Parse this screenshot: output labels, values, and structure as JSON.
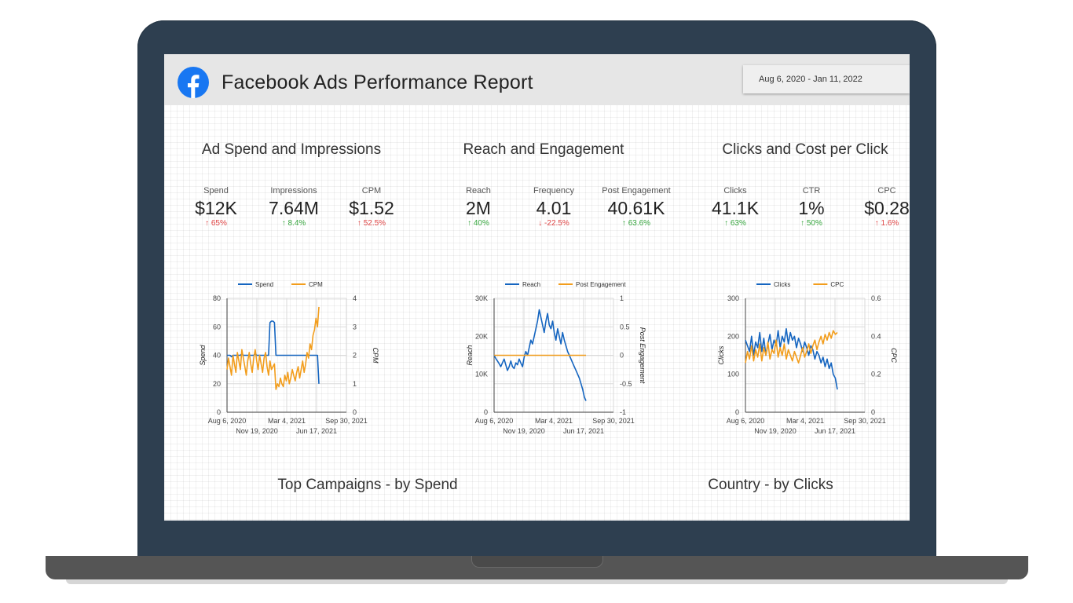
{
  "report": {
    "title": "Facebook Ads Performance Report",
    "date_range": "Aug 6, 2020 - Jan 11, 2022"
  },
  "colors": {
    "blue": "#1565c0",
    "orange": "#f29d1c",
    "good": "#37a63f",
    "bad": "#e04545",
    "facebook": "#1877f2"
  },
  "sections": [
    {
      "title": "Ad Spend and Impressions",
      "metrics": [
        {
          "label": "Spend",
          "value": "$12K",
          "delta": "65%",
          "direction": "up",
          "tone": "bad"
        },
        {
          "label": "Impressions",
          "value": "7.64M",
          "delta": "8.4%",
          "direction": "up",
          "tone": "good"
        },
        {
          "label": "CPM",
          "value": "$1.52",
          "delta": "52.5%",
          "direction": "up",
          "tone": "bad"
        }
      ]
    },
    {
      "title": "Reach and Engagement",
      "metrics": [
        {
          "label": "Reach",
          "value": "2M",
          "delta": "40%",
          "direction": "up",
          "tone": "good"
        },
        {
          "label": "Frequency",
          "value": "4.01",
          "delta": "-22.5%",
          "direction": "down",
          "tone": "bad"
        },
        {
          "label": "Post Engagement",
          "value": "40.61K",
          "delta": "63.6%",
          "direction": "up",
          "tone": "good"
        }
      ]
    },
    {
      "title": "Clicks and Cost per Click",
      "metrics": [
        {
          "label": "Clicks",
          "value": "41.1K",
          "delta": "63%",
          "direction": "up",
          "tone": "good"
        },
        {
          "label": "CTR",
          "value": "1%",
          "delta": "50%",
          "direction": "up",
          "tone": "good"
        },
        {
          "label": "CPC",
          "value": "$0.28",
          "delta": "1.6%",
          "direction": "up",
          "tone": "bad"
        }
      ]
    }
  ],
  "bottom_titles": {
    "campaigns": "Top Campaigns - by Spend",
    "country": "Country - by Clicks"
  },
  "chart_data": [
    {
      "type": "line",
      "id": "spend-cpm",
      "x_ticks_top": [
        "Aug 6, 2020",
        "Mar 4, 2021",
        "Sep 30, 2021"
      ],
      "x_ticks_bottom": [
        "Nov 19, 2020",
        "Jun 17, 2021"
      ],
      "ylabel": "Spend",
      "y2label": "CPM",
      "ylim": [
        0,
        80
      ],
      "y_ticks": [
        "0",
        "20",
        "40",
        "60",
        "80"
      ],
      "y2lim": [
        0,
        4
      ],
      "y2_ticks": [
        "0",
        "1",
        "2",
        "3",
        "4"
      ],
      "series": [
        {
          "name": "Spend",
          "axis": "left",
          "color": "blue",
          "values": [
            40,
            40,
            40,
            39,
            40,
            40,
            40,
            40,
            40,
            40,
            41,
            40,
            40,
            40,
            40,
            40,
            40,
            40,
            40,
            41,
            40,
            40,
            40,
            40,
            40,
            40,
            40,
            40,
            40,
            63,
            64,
            64,
            63,
            40,
            40,
            40,
            40,
            40,
            40,
            40,
            40,
            40,
            40,
            40,
            40,
            40,
            40,
            40,
            40,
            40,
            40,
            40,
            40,
            40,
            40,
            40,
            40,
            40,
            40,
            40,
            40,
            40,
            20
          ]
        },
        {
          "name": "CPM",
          "axis": "right",
          "color": "orange",
          "values": [
            1.5,
            1.9,
            1.6,
            1.3,
            2.0,
            1.7,
            1.4,
            2.1,
            1.8,
            1.5,
            2.2,
            1.9,
            1.6,
            1.3,
            1.8,
            2.1,
            1.7,
            1.4,
            1.9,
            2.2,
            1.8,
            1.5,
            2.0,
            1.7,
            1.4,
            1.9,
            2.1,
            1.6,
            1.3,
            1.8,
            1.5,
            1.6,
            1.7,
            0.8,
            1.0,
            0.9,
            1.2,
            1.0,
            0.9,
            1.3,
            1.1,
            1.4,
            1.0,
            1.2,
            1.5,
            1.3,
            1.1,
            1.4,
            1.6,
            1.2,
            1.5,
            1.8,
            1.4,
            1.7,
            2.1,
            1.9,
            2.4,
            2.2,
            2.7,
            2.9,
            3.3,
            3.0,
            3.7
          ]
        }
      ]
    },
    {
      "type": "line",
      "id": "reach-engagement",
      "x_ticks_top": [
        "Aug 6, 2020",
        "Mar 4, 2021",
        "Sep 30, 2021"
      ],
      "x_ticks_bottom": [
        "Nov 19, 2020",
        "Jun 17, 2021"
      ],
      "ylabel": "Reach",
      "y2label": "Post Engagement",
      "ylim": [
        0,
        30000
      ],
      "y_ticks": [
        "0",
        "10K",
        "20K",
        "30K"
      ],
      "y2lim": [
        -1,
        1
      ],
      "y2_ticks": [
        "-1",
        "-0.5",
        "0",
        "0.5",
        "1"
      ],
      "series": [
        {
          "name": "Reach",
          "axis": "left",
          "color": "blue",
          "values": [
            15000,
            14200,
            13500,
            12800,
            12000,
            13000,
            14000,
            12500,
            11000,
            12000,
            13500,
            12000,
            11500,
            13000,
            12500,
            14000,
            13000,
            12000,
            14500,
            16000,
            15000,
            17000,
            19000,
            18000,
            20000,
            22000,
            24000,
            27000,
            25000,
            23000,
            21000,
            24000,
            26000,
            23000,
            22000,
            24000,
            21000,
            19000,
            22000,
            20000,
            18000,
            21000,
            19000,
            17500,
            16000,
            15000,
            14000,
            13000,
            12000,
            11000,
            10000,
            9000,
            7500,
            6000,
            4000,
            3000
          ]
        },
        {
          "name": "Post Engagement",
          "axis": "right",
          "color": "orange",
          "values": [
            0,
            0,
            0,
            0,
            0,
            0,
            0,
            0,
            0,
            0,
            0,
            0,
            0,
            0,
            0,
            0,
            0,
            0,
            0,
            0,
            0,
            0,
            0,
            0,
            0,
            0,
            0,
            0,
            0,
            0,
            0,
            0,
            0,
            0,
            0,
            0,
            0,
            0,
            0,
            0,
            0,
            0,
            0,
            0,
            0,
            0,
            0,
            0,
            0,
            0,
            0,
            0,
            0,
            0,
            0,
            0
          ]
        }
      ]
    },
    {
      "type": "line",
      "id": "clicks-cpc",
      "x_ticks_top": [
        "Aug 6, 2020",
        "Mar 4, 2021",
        "Sep 30, 2021"
      ],
      "x_ticks_bottom": [
        "Nov 19, 2020",
        "Jun 17, 2021"
      ],
      "ylabel": "Clicks",
      "y2label": "CPC",
      "ylim": [
        0,
        300
      ],
      "y_ticks": [
        "0",
        "100",
        "200",
        "300"
      ],
      "y2lim": [
        0,
        0.6
      ],
      "y2_ticks": [
        "0",
        "0.2",
        "0.4",
        "0.6"
      ],
      "series": [
        {
          "name": "Clicks",
          "axis": "left",
          "color": "blue",
          "values": [
            190,
            175,
            160,
            200,
            150,
            185,
            170,
            210,
            160,
            195,
            150,
            180,
            205,
            165,
            190,
            175,
            215,
            170,
            200,
            185,
            220,
            180,
            210,
            190,
            200,
            170,
            195,
            180,
            160,
            185,
            170,
            150,
            175,
            165,
            140,
            160,
            150,
            130,
            145,
            120,
            140,
            115,
            130,
            100,
            90,
            60
          ]
        },
        {
          "name": "CPC",
          "axis": "right",
          "color": "orange",
          "values": [
            0.26,
            0.32,
            0.28,
            0.35,
            0.27,
            0.33,
            0.29,
            0.36,
            0.27,
            0.34,
            0.3,
            0.37,
            0.28,
            0.33,
            0.31,
            0.38,
            0.29,
            0.34,
            0.3,
            0.36,
            0.28,
            0.33,
            0.3,
            0.27,
            0.32,
            0.29,
            0.26,
            0.3,
            0.34,
            0.29,
            0.32,
            0.36,
            0.31,
            0.35,
            0.38,
            0.33,
            0.37,
            0.4,
            0.36,
            0.41,
            0.38,
            0.42,
            0.39,
            0.43,
            0.41,
            0.42
          ]
        }
      ]
    }
  ]
}
